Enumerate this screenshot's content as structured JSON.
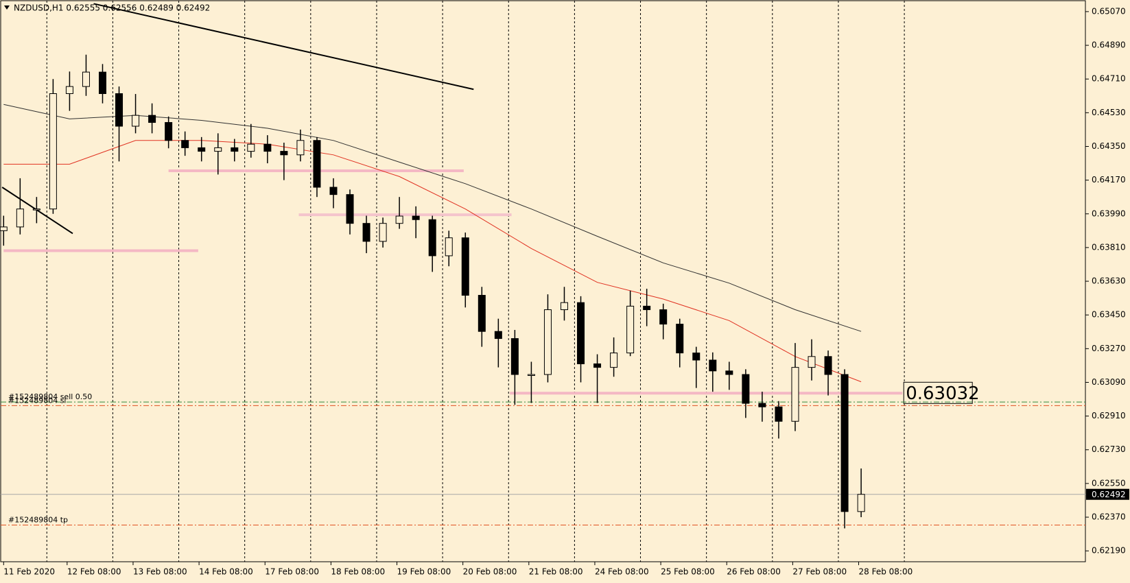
{
  "chart_data": {
    "type": "candlestick",
    "title": "NZDUSD,H1  0.62555 0.62556 0.62489 0.62492",
    "color": "#000000",
    "open": [
      0.639,
      0.6392,
      0.64016,
      0.64016,
      0.64632,
      0.6467,
      0.64747,
      0.64632,
      0.64458,
      0.64516,
      0.64478,
      0.64382,
      0.64343,
      0.64324,
      0.64343,
      0.64324,
      0.64362,
      0.64324,
      0.64305,
      0.64382,
      0.64132,
      0.64093,
      0.63939,
      0.63843,
      0.63939,
      0.63978,
      0.63959,
      0.63766,
      0.63862,
      0.63555,
      0.63362,
      0.63324,
      0.63132,
      0.63132,
      0.63478,
      0.63516,
      0.63189,
      0.6317,
      0.63247,
      0.63497,
      0.63478,
      0.63401,
      0.63247,
      0.63209,
      0.63151,
      0.63132,
      0.62978,
      0.62959,
      0.62882,
      0.6317,
      0.63228,
      0.63132,
      0.624
    ],
    "high": [
      0.6398,
      0.6418,
      0.6408,
      0.6471,
      0.6475,
      0.6484,
      0.6479,
      0.6467,
      0.6463,
      0.6458,
      0.6451,
      0.6443,
      0.644,
      0.6442,
      0.6439,
      0.6447,
      0.6441,
      0.6437,
      0.6444,
      0.644,
      0.6418,
      0.6412,
      0.6398,
      0.6397,
      0.6408,
      0.6403,
      0.6398,
      0.639,
      0.6389,
      0.636,
      0.6343,
      0.6337,
      0.632,
      0.6356,
      0.636,
      0.6355,
      0.6324,
      0.6333,
      0.6358,
      0.6359,
      0.6351,
      0.6343,
      0.6328,
      0.6325,
      0.632,
      0.6316,
      0.6304,
      0.6299,
      0.633,
      0.6332,
      0.6326,
      0.6316,
      0.6263
    ],
    "low": [
      0.6382,
      0.6388,
      0.6394,
      0.6399,
      0.6454,
      0.6462,
      0.6458,
      0.6427,
      0.6442,
      0.6442,
      0.6434,
      0.643,
      0.6427,
      0.642,
      0.6427,
      0.6429,
      0.6426,
      0.6417,
      0.6427,
      0.6408,
      0.6402,
      0.6388,
      0.6378,
      0.6381,
      0.6391,
      0.6386,
      0.6368,
      0.6371,
      0.6349,
      0.6328,
      0.6317,
      0.6297,
      0.6298,
      0.6309,
      0.6342,
      0.6309,
      0.6298,
      0.6312,
      0.6323,
      0.6339,
      0.6332,
      0.6317,
      0.6306,
      0.6304,
      0.6305,
      0.629,
      0.6288,
      0.6279,
      0.6283,
      0.631,
      0.6302,
      0.6231,
      0.6237
    ],
    "close": [
      0.6392,
      0.64016,
      0.64016,
      0.64632,
      0.6467,
      0.64747,
      0.64632,
      0.64458,
      0.64516,
      0.64478,
      0.64382,
      0.64343,
      0.64324,
      0.64343,
      0.64324,
      0.64362,
      0.64324,
      0.64305,
      0.64382,
      0.64132,
      0.64093,
      0.63939,
      0.63843,
      0.63939,
      0.63978,
      0.63959,
      0.63766,
      0.63862,
      0.63555,
      0.63362,
      0.63324,
      0.63132,
      0.63132,
      0.63478,
      0.63516,
      0.63189,
      0.6317,
      0.63247,
      0.63497,
      0.63478,
      0.63401,
      0.63247,
      0.63209,
      0.63151,
      0.63132,
      0.62978,
      0.62959,
      0.62882,
      0.6317,
      0.63228,
      0.63132,
      0.624,
      0.62492
    ],
    "xlim": [
      -0.22,
      65.6
    ],
    "ylim": [
      0.62132,
      0.65132
    ],
    "yticks": [
      {
        "value": 0.6507,
        "label": "0.65070"
      },
      {
        "value": 0.6489,
        "label": "0.64890"
      },
      {
        "value": 0.6471,
        "label": "0.64710"
      },
      {
        "value": 0.6453,
        "label": "0.64530"
      },
      {
        "value": 0.6435,
        "label": "0.64350"
      },
      {
        "value": 0.6417,
        "label": "0.64170"
      },
      {
        "value": 0.6399,
        "label": "0.63990"
      },
      {
        "value": 0.6381,
        "label": "0.63810"
      },
      {
        "value": 0.6363,
        "label": "0.63630"
      },
      {
        "value": 0.6345,
        "label": "0.63450"
      },
      {
        "value": 0.6327,
        "label": "0.63270"
      },
      {
        "value": 0.6309,
        "label": "0.63090"
      },
      {
        "value": 0.6291,
        "label": "0.62910"
      },
      {
        "value": 0.6273,
        "label": "0.62730"
      },
      {
        "value": 0.6255,
        "label": "0.62550"
      },
      {
        "value": 0.6237,
        "label": "0.62370"
      },
      {
        "value": 0.6219,
        "label": "0.62190"
      }
    ],
    "xticks": [
      {
        "value": 0,
        "label": "11 Feb 2020"
      },
      {
        "value": 3.85,
        "label": "12 Feb 08:00"
      },
      {
        "value": 7.85,
        "label": "13 Feb 08:00"
      },
      {
        "value": 11.85,
        "label": "14 Feb 08:00"
      },
      {
        "value": 15.85,
        "label": "17 Feb 08:00"
      },
      {
        "value": 19.85,
        "label": "18 Feb 08:00"
      },
      {
        "value": 23.85,
        "label": "19 Feb 08:00"
      },
      {
        "value": 27.85,
        "label": "20 Feb 08:00"
      },
      {
        "value": 31.85,
        "label": "21 Feb 08:00"
      },
      {
        "value": 35.85,
        "label": "24 Feb 08:00"
      },
      {
        "value": 39.85,
        "label": "25 Feb 08:00"
      },
      {
        "value": 43.85,
        "label": "26 Feb 08:00"
      },
      {
        "value": 47.85,
        "label": "27 Feb 08:00"
      },
      {
        "value": 51.85,
        "label": "28 Feb 08:00"
      }
    ],
    "xgrid": [
      2.62,
      6.62,
      10.62,
      14.62,
      18.62,
      22.62,
      26.62,
      30.62,
      34.62,
      38.62,
      42.62,
      46.62,
      50.62,
      54.62
    ],
    "grid": true,
    "lines": [
      {
        "color": "#303030",
        "x": [
          0,
          4,
          8,
          12,
          16,
          20,
          24,
          28,
          32,
          36,
          40,
          44,
          48,
          52
        ],
        "values": [
          0.64574,
          0.64497,
          0.64516,
          0.64489,
          0.64447,
          0.64382,
          0.64266,
          0.64151,
          0.64016,
          0.6387,
          0.63728,
          0.6362,
          0.63478,
          0.63362
        ]
      },
      {
        "color": "#e03020",
        "x": [
          0,
          4,
          8,
          12,
          16,
          20,
          24,
          28,
          32,
          36,
          40,
          44,
          48,
          52
        ],
        "values": [
          0.64255,
          0.64255,
          0.64382,
          0.64382,
          0.64362,
          0.64305,
          0.64189,
          0.64016,
          0.63805,
          0.63624,
          0.63535,
          0.6342,
          0.63228,
          0.63093
        ]
      }
    ],
    "trendlines": [
      {
        "color": "#000000",
        "x": [
          5.46,
          28.5
        ],
        "values": [
          0.65112,
          0.64655
        ]
      },
      {
        "color": "#000000",
        "x": [
          -0.09,
          4.19
        ],
        "values": [
          0.64132,
          0.63885
        ]
      }
    ],
    "levels": [
      {
        "color": "#f4b8c4",
        "x": [
          0,
          11.8
        ],
        "value": 0.63793
      },
      {
        "color": "#f4b8c4",
        "x": [
          10.0,
          27.9
        ],
        "value": 0.6422
      },
      {
        "color": "#f4c4cc",
        "x": [
          17.9,
          30.8
        ],
        "value": 0.63985
      },
      {
        "color": "#f4b8c4",
        "x": [
          30.7,
          54.5
        ],
        "value": 0.63032,
        "label_box": true
      }
    ],
    "orders": [
      {
        "label": "#152489804 sell 0.50",
        "price": 0.62985,
        "color": "#2e8b3e"
      },
      {
        "label": "#152489804 sl",
        "price": 0.62966,
        "color": "#e05020"
      },
      {
        "label": "#152489804 tp",
        "price": 0.62328,
        "color": "#e05020"
      }
    ],
    "current_price": {
      "value": 0.62492,
      "color": "#a8a8a8"
    }
  }
}
